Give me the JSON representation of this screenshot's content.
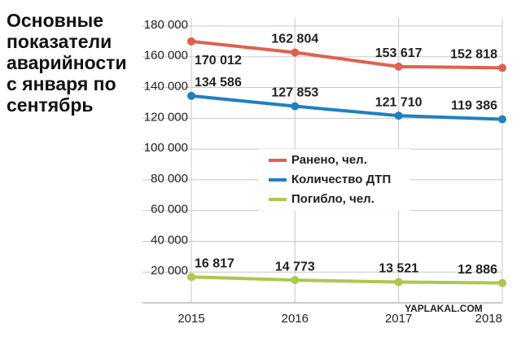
{
  "chart_data": {
    "type": "line",
    "title": "Основные показатели аварийности с января по сентябрь",
    "x": [
      2015,
      2016,
      2017,
      2018
    ],
    "xlim": [
      2015,
      2018
    ],
    "xticks": [
      2015,
      2016,
      2017,
      2018
    ],
    "ylim": [
      0,
      180000
    ],
    "yticks": [
      {
        "value": 20000,
        "label": "20 000"
      },
      {
        "value": 40000,
        "label": "40 000"
      },
      {
        "value": 60000,
        "label": "60 000"
      },
      {
        "value": 80000,
        "label": "80 000"
      },
      {
        "value": 100000,
        "label": "100 000"
      },
      {
        "value": 120000,
        "label": "120 000"
      },
      {
        "value": 140000,
        "label": "140 000"
      },
      {
        "value": 160000,
        "label": "160 000"
      },
      {
        "value": 180000,
        "label": "180 000"
      }
    ],
    "grid": true,
    "series": [
      {
        "name": "Ранено, чел.",
        "color": "#e0604f",
        "values": [
          170012,
          162804,
          153617,
          152818
        ],
        "value_labels": [
          "170 012",
          "162 804",
          "153 617",
          "152 818"
        ]
      },
      {
        "name": "Количество ДТП",
        "color": "#1f80c1",
        "values": [
          134586,
          127853,
          121710,
          119386
        ],
        "value_labels": [
          "134 586",
          "127 853",
          "121 710",
          "119 386"
        ]
      },
      {
        "name": "Погибло, чел.",
        "color": "#a9c94c",
        "values": [
          16817,
          14773,
          13521,
          12886
        ],
        "value_labels": [
          "16 817",
          "14 773",
          "13 521",
          "12 886"
        ]
      }
    ],
    "watermark": "YAPLAKAL.COM"
  }
}
